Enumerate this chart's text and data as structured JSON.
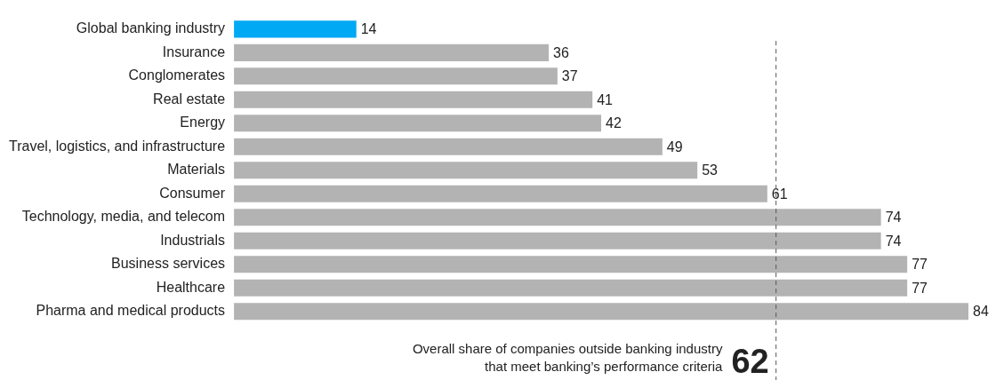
{
  "chart_data": {
    "type": "bar",
    "orientation": "horizontal",
    "categories": [
      "Global banking industry",
      "Insurance",
      "Conglomerates",
      "Real estate",
      "Energy",
      "Travel, logistics, and infrastructure",
      "Materials",
      "Consumer",
      "Technology, media, and telecom",
      "Industrials",
      "Business services",
      "Healthcare",
      "Pharma and medical products"
    ],
    "values": [
      14,
      36,
      37,
      41,
      42,
      49,
      53,
      61,
      74,
      74,
      77,
      77,
      84
    ],
    "colors": [
      "#00a9f4",
      "#b3b3b3",
      "#b3b3b3",
      "#b3b3b3",
      "#b3b3b3",
      "#b3b3b3",
      "#b3b3b3",
      "#b3b3b3",
      "#b3b3b3",
      "#b3b3b3",
      "#b3b3b3",
      "#b3b3b3",
      "#b3b3b3"
    ],
    "data_labels": true,
    "annotations": [
      "Overall share of companies outside banking industry that meet banking’s performance criteria",
      {
        "text": "62",
        "x": 62
      }
    ],
    "ref_lines": [
      {
        "axis": "x",
        "value": 62,
        "color": "#555555",
        "line_style": "dashed"
      }
    ],
    "legend": false
  }
}
